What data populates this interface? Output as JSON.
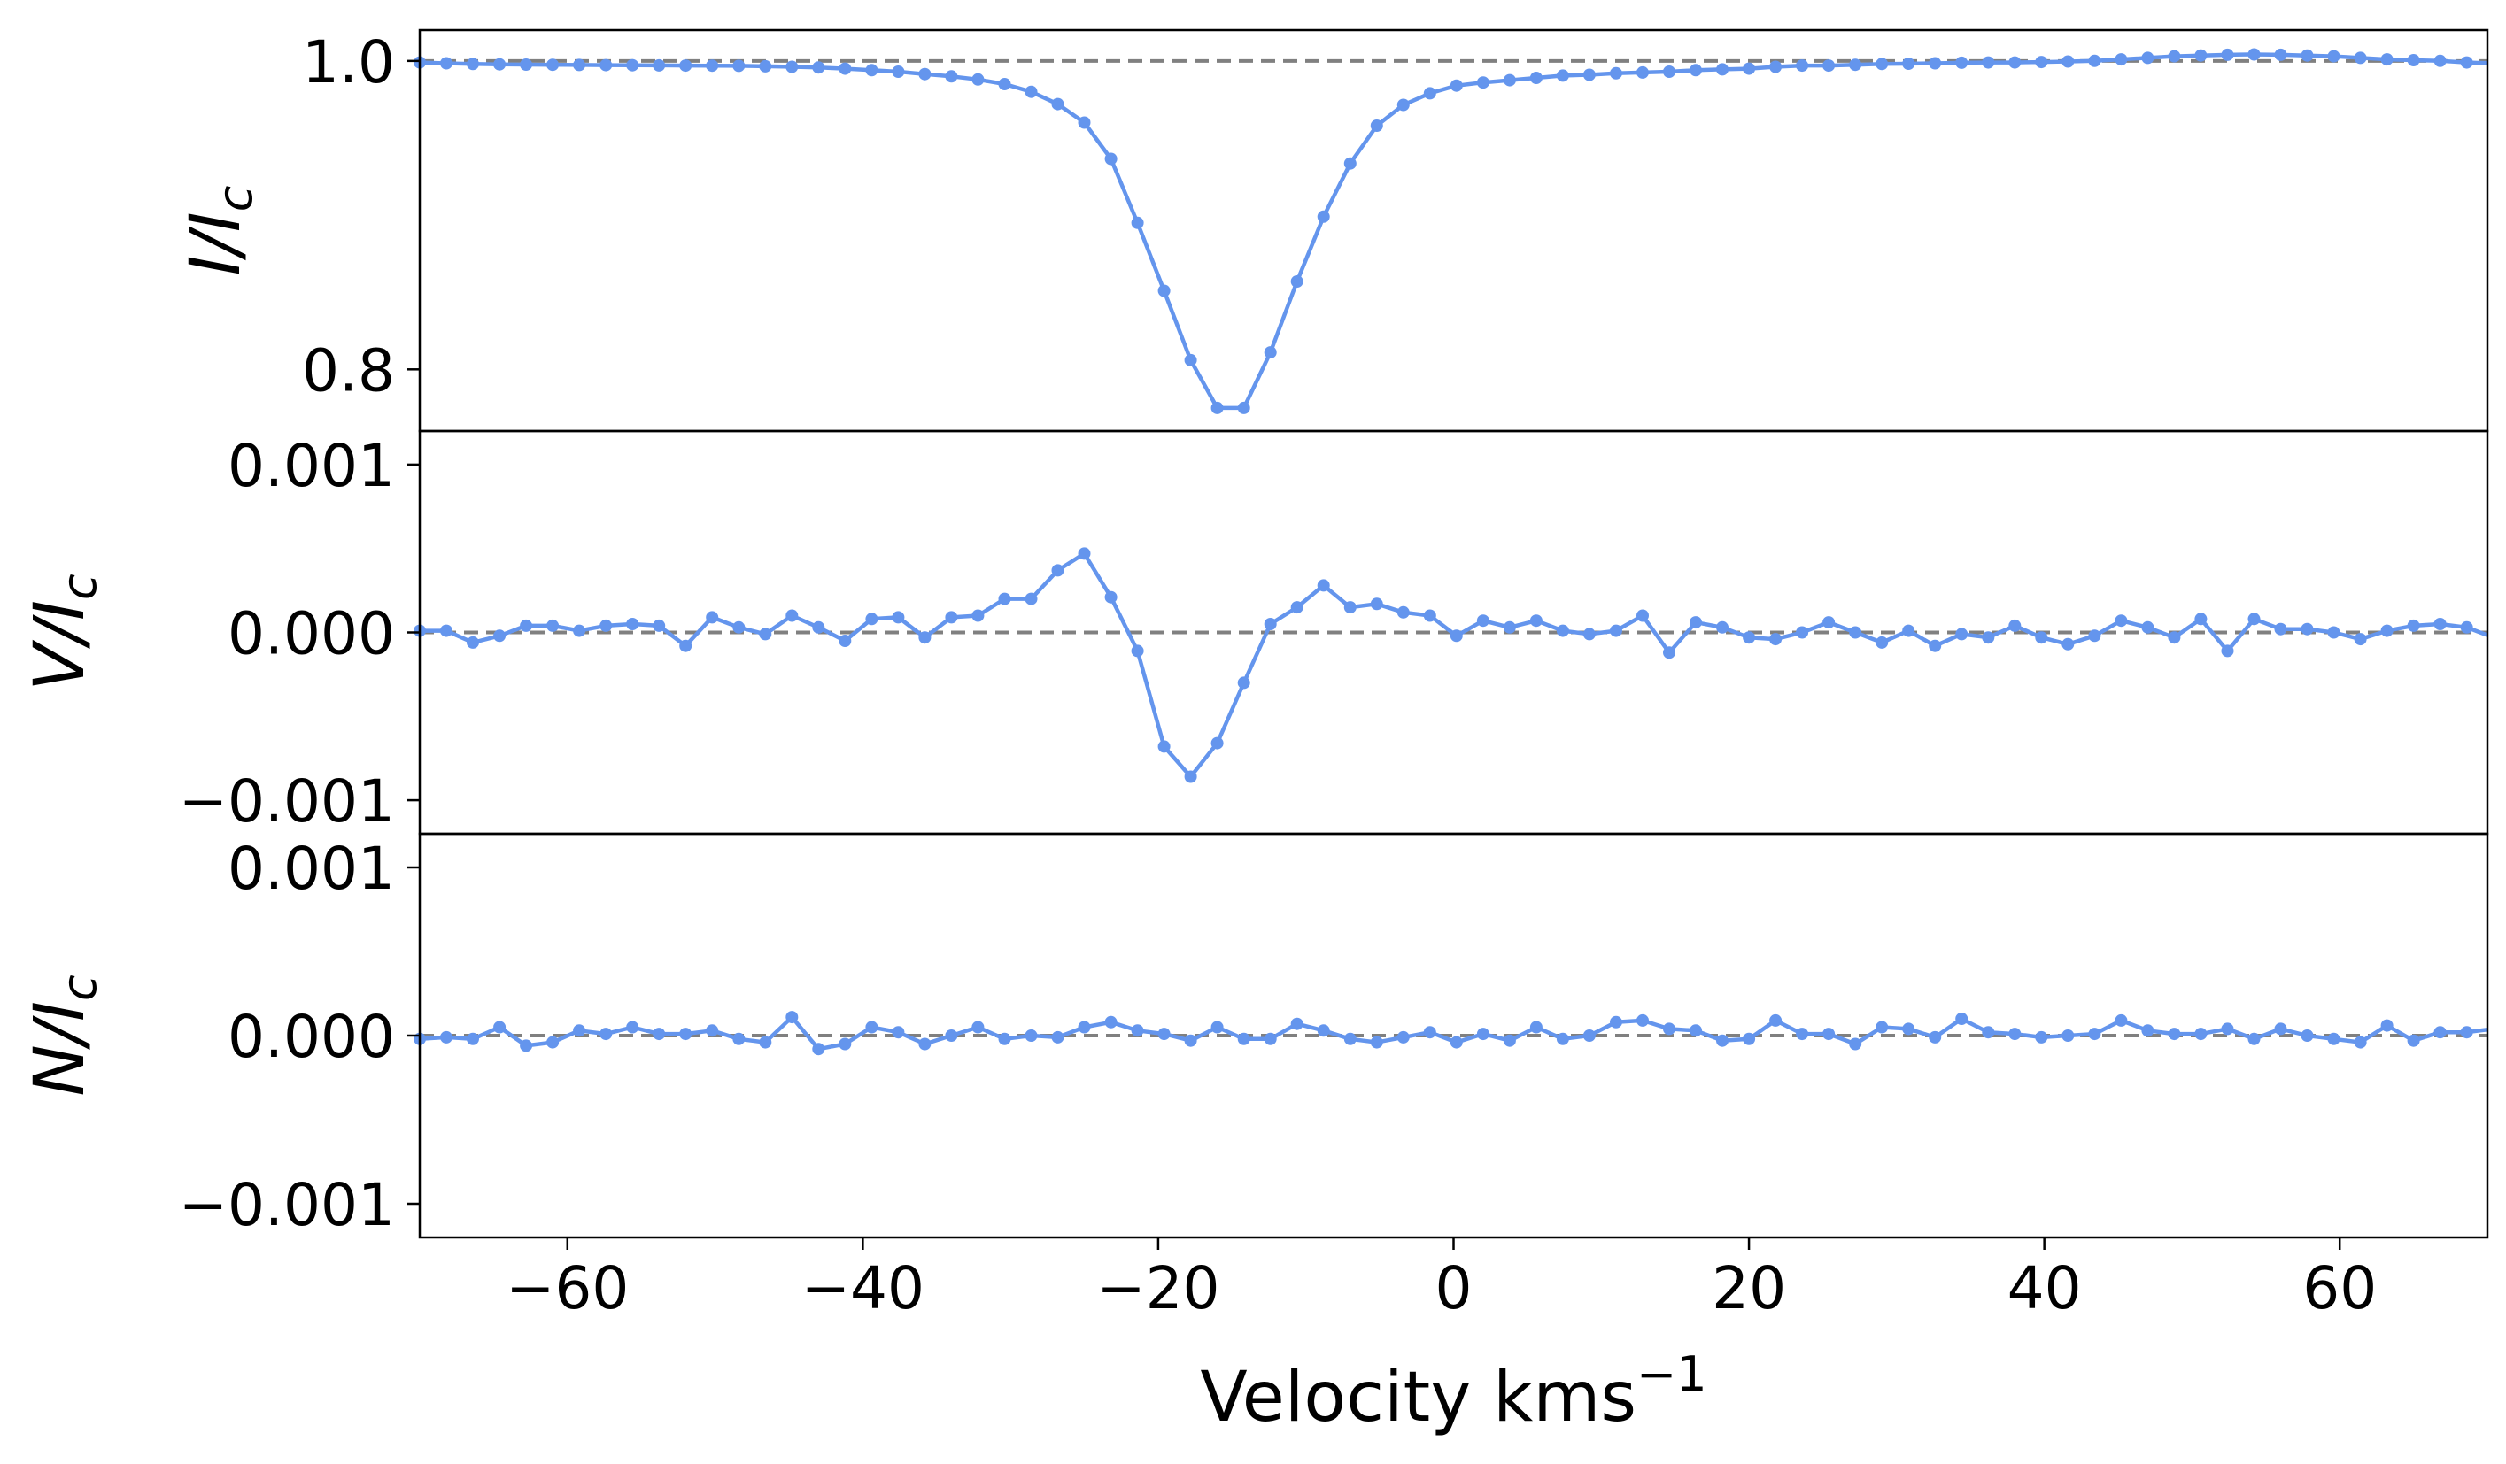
{
  "chart_data": {
    "type": "line",
    "xlabel": "Velocity kms",
    "xlabel_exponent": "−1",
    "xlim": [
      -70,
      70
    ],
    "x_ticks": [
      -60,
      -40,
      -20,
      0,
      20,
      40,
      60
    ],
    "x_tick_labels": [
      "−60",
      "−40",
      "−20",
      "0",
      "20",
      "40",
      "60"
    ],
    "line_color": "#6495ed",
    "reference_line_color": "#808080",
    "x": [
      -70,
      -68.2,
      -66.4,
      -64.6,
      -62.8,
      -61,
      -59.2,
      -57.4,
      -55.6,
      -53.8,
      -52,
      -50.2,
      -48.4,
      -46.6,
      -44.8,
      -43,
      -41.2,
      -39.4,
      -37.6,
      -35.8,
      -34,
      -32.2,
      -30.4,
      -28.6,
      -26.8,
      -25,
      -23.2,
      -21.4,
      -19.6,
      -17.8,
      -16,
      -14.2,
      -12.4,
      -10.6,
      -8.8,
      -7,
      -5.2,
      -3.4,
      -1.6,
      0.2,
      2,
      3.8,
      5.6,
      7.4,
      9.2,
      11,
      12.8,
      14.6,
      16.4,
      18.2,
      20,
      21.8,
      23.6,
      25.4,
      27.2,
      29,
      30.8,
      32.6,
      34.4,
      36.2,
      38,
      39.8,
      41.6,
      43.4,
      45.2,
      47,
      48.8,
      50.6,
      52.4,
      54.2,
      56,
      57.8,
      59.6,
      61.4,
      63.2,
      65,
      66.8,
      68.6,
      70.4
    ],
    "panels": [
      {
        "name": "intensity",
        "ylabel_base": "I/I",
        "ylabel_sub": "c",
        "ylim": [
          0.76,
          1.02
        ],
        "reference": 1.0,
        "y_ticks": [
          0.8,
          1.0
        ],
        "y_tick_labels": [
          "0.8",
          "1.0"
        ],
        "values": [
          0.999,
          0.9985,
          0.998,
          0.9978,
          0.9976,
          0.9975,
          0.9974,
          0.9973,
          0.9972,
          0.9971,
          0.997,
          0.9969,
          0.9968,
          0.9965,
          0.9962,
          0.9958,
          0.995,
          0.994,
          0.993,
          0.9915,
          0.99,
          0.988,
          0.985,
          0.98,
          0.972,
          0.96,
          0.9365,
          0.895,
          0.851,
          0.806,
          0.775,
          0.775,
          0.811,
          0.857,
          0.899,
          0.9335,
          0.958,
          0.9715,
          0.979,
          0.984,
          0.986,
          0.9875,
          0.989,
          0.9905,
          0.991,
          0.992,
          0.9925,
          0.993,
          0.994,
          0.9945,
          0.995,
          0.9962,
          0.997,
          0.997,
          0.9975,
          0.998,
          0.9982,
          0.9985,
          0.9988,
          0.999,
          0.999,
          0.9993,
          0.9996,
          1.0,
          1.001,
          1.002,
          1.003,
          1.0035,
          1.004,
          1.0042,
          1.004,
          1.0035,
          1.003,
          1.002,
          1.001,
          1.0005,
          1.0,
          0.999,
          0.9985
        ]
      },
      {
        "name": "stokes-v",
        "ylabel_base": "V/I",
        "ylabel_sub": "c",
        "ylim": [
          -0.0012,
          0.0012
        ],
        "reference": 0.0,
        "y_ticks": [
          -0.001,
          0.0,
          0.001
        ],
        "y_tick_labels": [
          "−0.001",
          "0.000",
          "0.001"
        ],
        "values": [
          1e-05,
          1e-05,
          -6e-05,
          -2e-05,
          4e-05,
          4e-05,
          1e-05,
          4e-05,
          5e-05,
          4e-05,
          -8e-05,
          9e-05,
          3e-05,
          -1e-05,
          0.0001,
          3e-05,
          -5e-05,
          8e-05,
          9e-05,
          -3e-05,
          9e-05,
          0.0001,
          0.0002,
          0.0002,
          0.00037,
          0.00047,
          0.00021,
          -0.00011,
          -0.00068,
          -0.00086,
          -0.00066,
          -0.0003,
          5e-05,
          0.00015,
          0.00028,
          0.00015,
          0.00017,
          0.00012,
          0.0001,
          -2e-05,
          7e-05,
          3e-05,
          7e-05,
          1e-05,
          -1e-05,
          1e-05,
          0.0001,
          -0.00012,
          6e-05,
          3e-05,
          -3e-05,
          -4e-05,
          0.0,
          6e-05,
          0.0,
          -6e-05,
          1e-05,
          -8e-05,
          -1e-05,
          -3e-05,
          4e-05,
          -3e-05,
          -7e-05,
          -2e-05,
          7e-05,
          3e-05,
          -3e-05,
          8e-05,
          -0.00011,
          8e-05,
          2e-05,
          2e-05,
          0.0,
          -4e-05,
          1e-05,
          4e-05,
          5e-05,
          3e-05,
          -3e-05
        ]
      },
      {
        "name": "null",
        "ylabel_base": "N/I",
        "ylabel_sub": "c",
        "ylim": [
          -0.0012,
          0.0012
        ],
        "reference": 0.0,
        "y_ticks": [
          -0.001,
          0.0,
          0.001
        ],
        "y_tick_labels": [
          "−0.001",
          "0.000",
          "0.001"
        ],
        "values": [
          -2e-05,
          -1e-05,
          -2e-05,
          5e-05,
          -6e-05,
          -4e-05,
          3e-05,
          1e-05,
          5e-05,
          1e-05,
          1e-05,
          3e-05,
          -2e-05,
          -4e-05,
          0.00011,
          -8e-05,
          -5e-05,
          5e-05,
          2e-05,
          -5e-05,
          0.0,
          5e-05,
          -2e-05,
          0.0,
          -1e-05,
          5e-05,
          8e-05,
          3e-05,
          1e-05,
          -3e-05,
          5e-05,
          -2e-05,
          -2e-05,
          7e-05,
          3e-05,
          -2e-05,
          -4e-05,
          -1e-05,
          2e-05,
          -4e-05,
          1e-05,
          -3e-05,
          5e-05,
          -2e-05,
          0.0,
          8e-05,
          9e-05,
          4e-05,
          3e-05,
          -3e-05,
          -2e-05,
          9e-05,
          1e-05,
          1e-05,
          -5e-05,
          5e-05,
          4e-05,
          -1e-05,
          0.0001,
          2e-05,
          1e-05,
          -1e-05,
          0.0,
          1e-05,
          9e-05,
          3e-05,
          1e-05,
          1e-05,
          4e-05,
          -2e-05,
          4e-05,
          0.0,
          -2e-05,
          -4e-05,
          6e-05,
          -3e-05,
          2e-05,
          2e-05,
          4e-05
        ]
      }
    ]
  }
}
